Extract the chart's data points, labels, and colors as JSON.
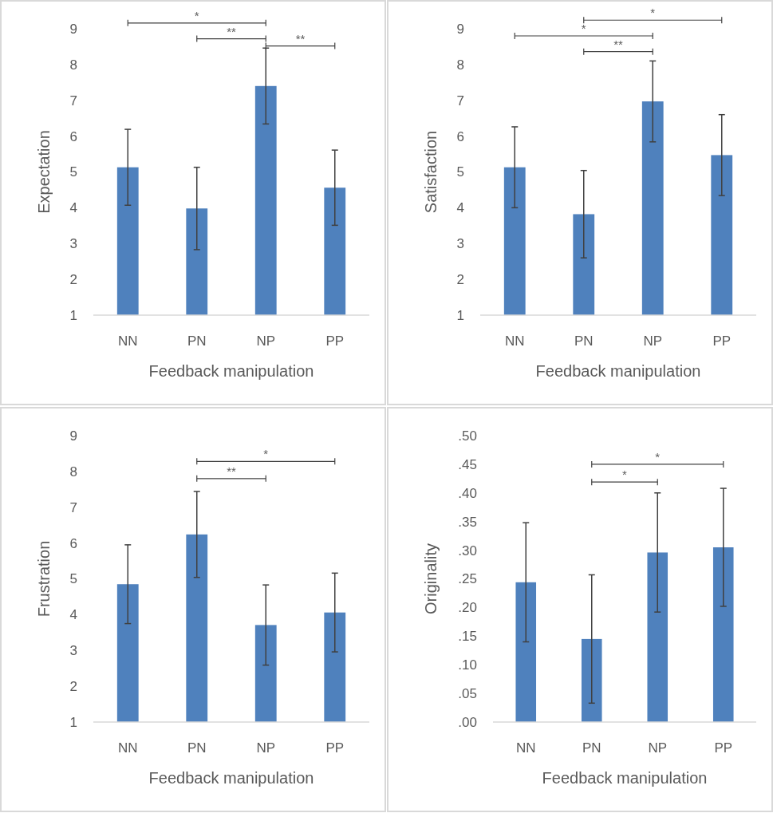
{
  "chart_data": [
    {
      "type": "bar",
      "xlabel": "Feedback manipulation",
      "ylabel": "Expectation",
      "categories": [
        "NN",
        "PN",
        "NP",
        "PP"
      ],
      "values": [
        5.13,
        3.98,
        7.4,
        4.56
      ],
      "errors": [
        1.06,
        1.15,
        1.06,
        1.05
      ],
      "color": "#4f81bd",
      "ylim": [
        1,
        9
      ],
      "yticks": [
        1,
        2,
        3,
        4,
        5,
        6,
        7,
        8,
        9
      ],
      "annotations": [
        "*",
        "**",
        "**"
      ]
    },
    {
      "type": "bar",
      "xlabel": "Feedback manipulation",
      "ylabel": "Satisfaction",
      "categories": [
        "NN",
        "PN",
        "NP",
        "PP"
      ],
      "values": [
        5.13,
        3.82,
        6.97,
        5.47
      ],
      "errors": [
        1.13,
        1.22,
        1.13,
        1.13
      ],
      "color": "#4f81bd",
      "ylim": [
        1,
        9
      ],
      "yticks": [
        1,
        2,
        3,
        4,
        5,
        6,
        7,
        8,
        9
      ],
      "annotations": [
        "*",
        "*",
        "**"
      ]
    },
    {
      "type": "bar",
      "xlabel": "Feedback manipulation",
      "ylabel": "Frustration",
      "categories": [
        "NN",
        "PN",
        "NP",
        "PP"
      ],
      "values": [
        4.85,
        6.24,
        3.71,
        4.06
      ],
      "errors": [
        1.1,
        1.2,
        1.12,
        1.1
      ],
      "color": "#4f81bd",
      "ylim": [
        1,
        9
      ],
      "yticks": [
        1,
        2,
        3,
        4,
        5,
        6,
        7,
        8,
        9
      ],
      "annotations": [
        "*",
        "**"
      ]
    },
    {
      "type": "bar",
      "xlabel": "Feedback manipulation",
      "ylabel": "Originality",
      "categories": [
        "NN",
        "PN",
        "NP",
        "PP"
      ],
      "values": [
        0.244,
        0.145,
        0.296,
        0.305
      ],
      "errors": [
        0.104,
        0.112,
        0.104,
        0.103
      ],
      "color": "#4f81bd",
      "ylim": [
        0,
        0.5
      ],
      "yticks": [
        {
          "value": 0,
          "label": ".00"
        },
        {
          "value": 0.05,
          "label": ".05"
        },
        {
          "value": 0.1,
          "label": ".10"
        },
        {
          "value": 0.15,
          "label": ".15"
        },
        {
          "value": 0.2,
          "label": ".20"
        },
        {
          "value": 0.25,
          "label": ".25"
        },
        {
          "value": 0.3,
          "label": ".30"
        },
        {
          "value": 0.35,
          "label": ".35"
        },
        {
          "value": 0.4,
          "label": ".40"
        },
        {
          "value": 0.45,
          "label": ".45"
        },
        {
          "value": 0.5,
          "label": ".50"
        }
      ],
      "annotations": [
        "*",
        "*"
      ]
    }
  ]
}
